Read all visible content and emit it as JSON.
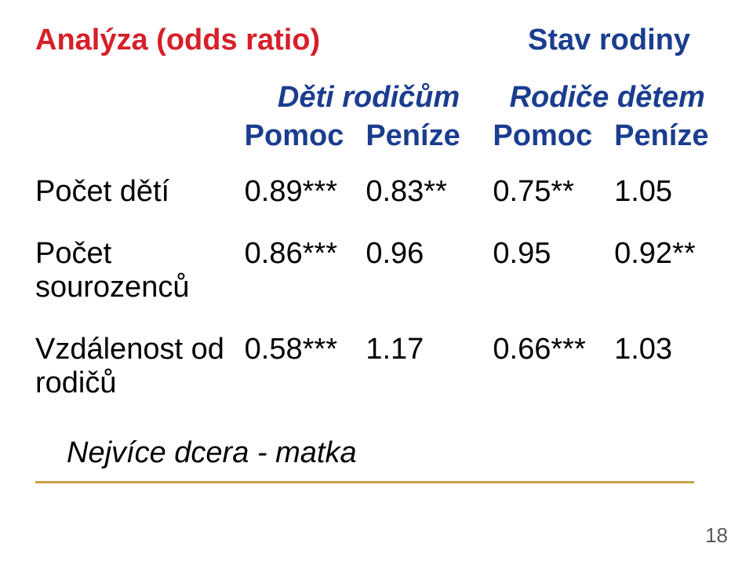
{
  "title_left": {
    "text": "Analýza (odds ratio)",
    "color": "#d6202a"
  },
  "title_right": {
    "text": "Stav rodiny",
    "color": "#1a3d8f"
  },
  "header_top": {
    "col_a": "Děti rodičům",
    "col_b": "Rodiče dětem",
    "color": "#1a3d8f"
  },
  "header_sub": {
    "c1": "Pomoc",
    "c2": "Peníze",
    "c3": "Pomoc",
    "c4": "Peníze",
    "color": "#1a3d8f"
  },
  "rows": [
    {
      "label": "Počet dětí",
      "c1": "0.89***",
      "c2": "0.83**",
      "c3": "0.75**",
      "c4": "1.05"
    },
    {
      "label": "Počet sourozenců",
      "c1": "0.86***",
      "c2": "0.96",
      "c3": "0.95",
      "c4": "0.92**"
    },
    {
      "label": "Vzdálenost od rodičů",
      "c1": "0.58***",
      "c2": "1.17",
      "c3": "0.66***",
      "c4": "1.03"
    }
  ],
  "row_label_color": "#000000",
  "cell_color": "#000000",
  "note": {
    "text": "Nejvíce dcera - matka",
    "color": "#000000"
  },
  "rule_color": "#c8a14a",
  "page_number": "18",
  "pagenum_color": "#5a5a5a",
  "fontsize_main": 38
}
